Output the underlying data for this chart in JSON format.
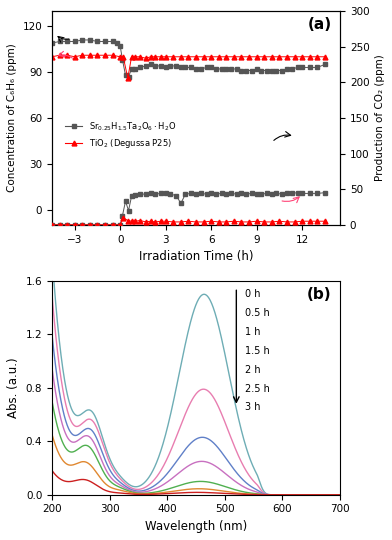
{
  "panel_a": {
    "title": "(a)",
    "xlabel": "Irradiation Time (h)",
    "ylabel_left": "Concentration of C₆H₆ (ppm)",
    "ylabel_right": "Production of CO₂ (ppm)",
    "ylim_left": [
      -10,
      130
    ],
    "ylim_right": [
      0,
      300
    ],
    "yticks_left": [
      0,
      30,
      60,
      90,
      120
    ],
    "yticks_right": [
      0,
      50,
      100,
      150,
      200,
      250,
      300
    ],
    "xlim": [
      -4.5,
      14.5
    ],
    "xticks": [
      -3,
      0,
      3,
      6,
      9,
      12
    ],
    "benzene_sr_x": [
      -4.5,
      -4.0,
      -3.5,
      -3.0,
      -2.5,
      -2.0,
      -1.5,
      -1.0,
      -0.5,
      -0.2,
      0.0,
      0.15,
      0.35,
      0.55,
      0.75,
      1.0,
      1.3,
      1.7,
      2.0,
      2.3,
      2.7,
      3.0,
      3.3,
      3.7,
      4.0,
      4.3,
      4.7,
      5.0,
      5.3,
      5.7,
      6.0,
      6.3,
      6.7,
      7.0,
      7.3,
      7.7,
      8.0,
      8.3,
      8.7,
      9.0,
      9.3,
      9.7,
      10.0,
      10.3,
      10.7,
      11.0,
      11.3,
      11.7,
      12.0,
      12.5,
      13.0,
      13.5
    ],
    "benzene_sr_y": [
      109,
      110,
      110,
      110,
      111,
      111,
      110,
      110,
      110,
      109,
      107,
      98,
      88,
      87,
      92,
      92,
      93,
      94,
      95,
      94,
      94,
      93,
      94,
      94,
      93,
      93,
      93,
      92,
      92,
      93,
      93,
      92,
      92,
      92,
      92,
      92,
      91,
      91,
      91,
      92,
      91,
      91,
      91,
      91,
      91,
      92,
      92,
      93,
      93,
      93,
      93,
      95
    ],
    "benzene_tio2_x": [
      -4.5,
      -4.0,
      -3.5,
      -3.0,
      -2.5,
      -2.0,
      -1.5,
      -1.0,
      -0.5,
      0.0,
      0.2,
      0.5,
      0.75,
      1.0,
      1.3,
      1.7,
      2.0,
      2.3,
      2.7,
      3.0,
      3.5,
      4.0,
      4.5,
      5.0,
      5.5,
      6.0,
      6.5,
      7.0,
      7.5,
      8.0,
      8.5,
      9.0,
      9.5,
      10.0,
      10.5,
      11.0,
      11.5,
      12.0,
      12.5,
      13.0,
      13.5
    ],
    "benzene_tio2_y": [
      100,
      101,
      101,
      100,
      101,
      101,
      101,
      101,
      101,
      100,
      100,
      86,
      100,
      100,
      100,
      99,
      100,
      100,
      100,
      100,
      100,
      100,
      100,
      100,
      100,
      100,
      100,
      100,
      100,
      100,
      100,
      100,
      100,
      100,
      100,
      100,
      100,
      100,
      100,
      100,
      100
    ],
    "co2_sr_x": [
      -4.5,
      -4.0,
      -3.5,
      -3.0,
      -2.5,
      -2.0,
      -1.5,
      -1.0,
      -0.5,
      0.0,
      0.15,
      0.35,
      0.55,
      0.75,
      1.0,
      1.3,
      1.7,
      2.0,
      2.3,
      2.7,
      3.0,
      3.3,
      3.7,
      4.0,
      4.3,
      4.7,
      5.0,
      5.3,
      5.7,
      6.0,
      6.3,
      6.7,
      7.0,
      7.3,
      7.7,
      8.0,
      8.3,
      8.7,
      9.0,
      9.3,
      9.7,
      10.0,
      10.3,
      10.7,
      11.0,
      11.3,
      11.7,
      12.0,
      12.5,
      13.0,
      13.5
    ],
    "co2_sr_y": [
      0,
      0,
      0,
      0,
      0,
      0,
      0,
      0,
      0,
      0,
      13,
      33,
      20,
      40,
      42,
      43,
      43,
      44,
      43,
      44,
      44,
      43,
      41,
      30,
      43,
      44,
      43,
      44,
      43,
      44,
      43,
      44,
      43,
      44,
      43,
      44,
      43,
      44,
      43,
      43,
      44,
      43,
      44,
      43,
      44,
      44,
      45,
      44,
      44,
      44,
      45
    ],
    "co2_tio2_x": [
      -4.5,
      -4.0,
      -3.5,
      -3.0,
      -2.5,
      -2.0,
      -1.5,
      -1.0,
      -0.5,
      0.0,
      0.2,
      0.5,
      0.75,
      1.0,
      1.3,
      1.7,
      2.0,
      2.3,
      2.7,
      3.0,
      3.5,
      4.0,
      4.5,
      5.0,
      5.5,
      6.0,
      6.5,
      7.0,
      7.5,
      8.0,
      8.5,
      9.0,
      9.5,
      10.0,
      10.5,
      11.0,
      11.5,
      12.0,
      12.5,
      13.0,
      13.5
    ],
    "co2_tio2_y": [
      0,
      0,
      0,
      0,
      0,
      0,
      0,
      0,
      0,
      0,
      10,
      6,
      5,
      5,
      6,
      4,
      5,
      4,
      5,
      5,
      4,
      4,
      5,
      4,
      4,
      5,
      4,
      4,
      5,
      4,
      4,
      5,
      4,
      4,
      5,
      4,
      4,
      5,
      5,
      5,
      5
    ],
    "sr_color": "#555555",
    "tio2_color": "#FF0000",
    "marker_sr": "s",
    "marker_tio2": "^",
    "legend_sr": "Sr$_{0.25}$H$_{1.5}$Ta$_2$O$_6\\cdot$H$_2$O",
    "legend_tio2": "TiO$_2$ (Degussa P25)"
  },
  "panel_b": {
    "title": "(b)",
    "xlabel": "Wavelength (nm)",
    "ylabel": "Abs. (a.u.)",
    "xlim": [
      200,
      700
    ],
    "ylim": [
      0.0,
      1.6
    ],
    "xticks": [
      200,
      300,
      400,
      500,
      600,
      700
    ],
    "yticks": [
      0.0,
      0.4,
      0.8,
      1.2,
      1.6
    ],
    "legend_labels": [
      "0 h",
      "0.5 h",
      "1 h",
      "1.5 h",
      "2 h",
      "2.5 h",
      "3 h"
    ],
    "curve_colors": [
      "#6EADB5",
      "#E87DB0",
      "#6080C8",
      "#C870C0",
      "#50B050",
      "#E08830",
      "#CC2020"
    ],
    "peak1_x": [
      270,
      270,
      268,
      265,
      263,
      260,
      258
    ],
    "peak1_y": [
      0.47,
      0.43,
      0.38,
      0.34,
      0.29,
      0.19,
      0.09
    ],
    "peak2_x": [
      464,
      463,
      461,
      460,
      458,
      455,
      452
    ],
    "peak2_y": [
      1.5,
      0.79,
      0.43,
      0.25,
      0.1,
      0.045,
      0.018
    ],
    "valley_x": [
      330,
      330,
      330,
      330,
      330,
      330,
      330
    ],
    "valley_y": [
      0.13,
      0.11,
      0.09,
      0.075,
      0.06,
      0.04,
      0.015
    ],
    "uv_rise": [
      1.8,
      1.5,
      1.2,
      0.95,
      0.7,
      0.45,
      0.18
    ]
  }
}
